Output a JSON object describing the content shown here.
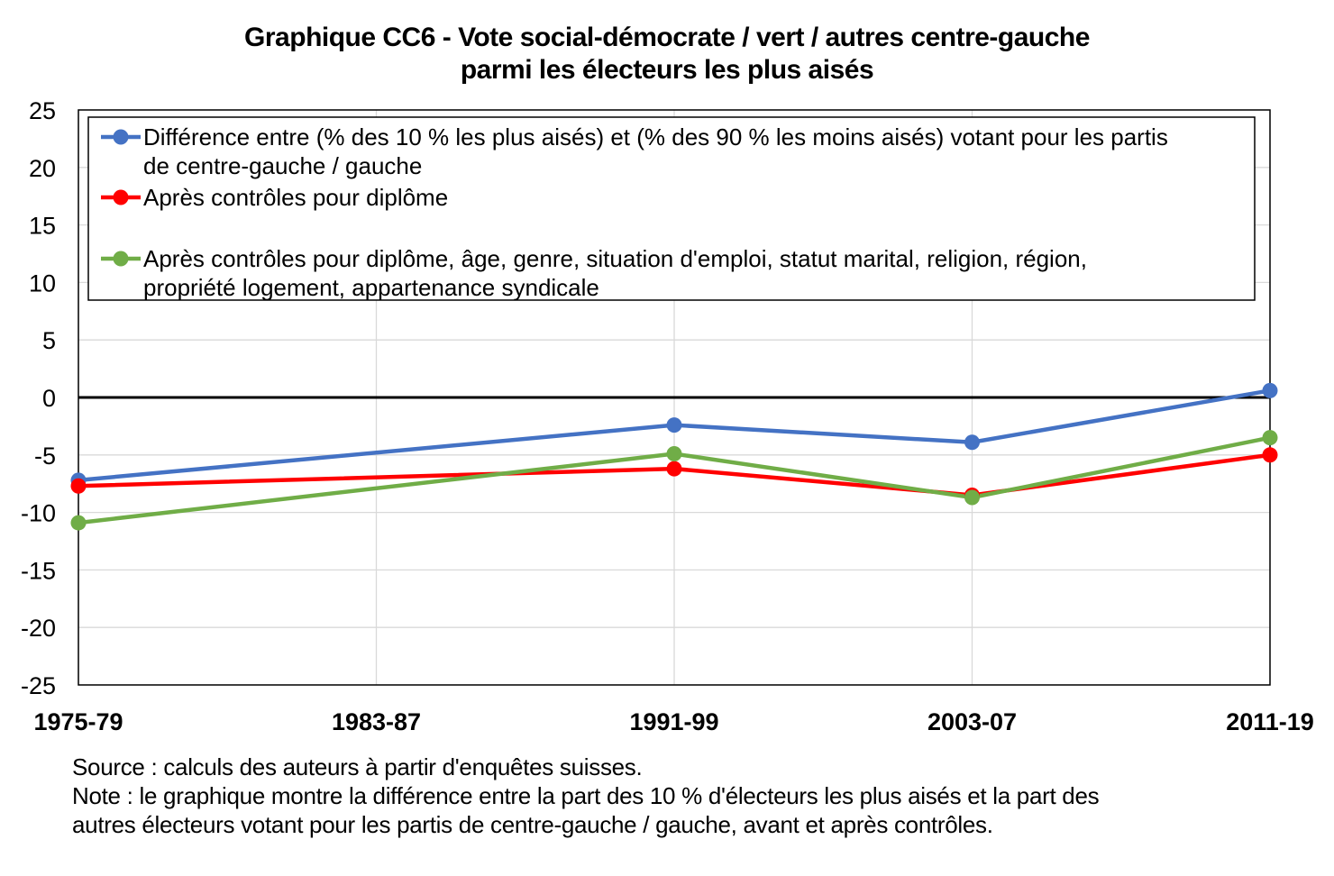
{
  "chart_data": {
    "type": "line",
    "title_lines": [
      "Graphique CC6 - Vote social-démocrate / vert / autres centre-gauche",
      "parmi les électeurs les plus aisés"
    ],
    "categories": [
      "1975-79",
      "1983-87",
      "1991-99",
      "2003-07",
      "2011-19"
    ],
    "ylim": [
      -25,
      25
    ],
    "yticks": [
      "25",
      "20",
      "15",
      "10",
      "5",
      "0",
      "-5",
      "-10",
      "-15",
      "-20",
      "-25"
    ],
    "grid": true,
    "legend_position": "top",
    "series": [
      {
        "name_lines": [
          "Différence entre (% des 10 % les plus aisés) et (% des 90 % les moins aisés) votant pour les partis",
          "de centre-gauche / gauche"
        ],
        "color": "#4472C4",
        "values": [
          -7.2,
          null,
          -2.4,
          -3.9,
          0.6
        ]
      },
      {
        "name_lines": [
          "Après contrôles pour diplôme"
        ],
        "color": "#FF0000",
        "values": [
          -7.7,
          null,
          -6.2,
          -8.5,
          -5.0
        ]
      },
      {
        "name_lines": [
          "Après contrôles pour diplôme, âge, genre, situation d'emploi, statut marital, religion, région,",
          "propriété logement, appartenance syndicale"
        ],
        "color": "#70AD47",
        "values": [
          -10.9,
          null,
          -4.9,
          -8.7,
          -3.5
        ]
      }
    ]
  },
  "notes": {
    "source": "Source : calculs des auteurs à partir d'enquêtes suisses.",
    "note_line1": "Note : le graphique montre la différence entre la part des 10 % d'électeurs les plus aisés et la part des",
    "note_line2": "autres électeurs votant pour les partis de centre-gauche / gauche, avant et après contrôles."
  }
}
